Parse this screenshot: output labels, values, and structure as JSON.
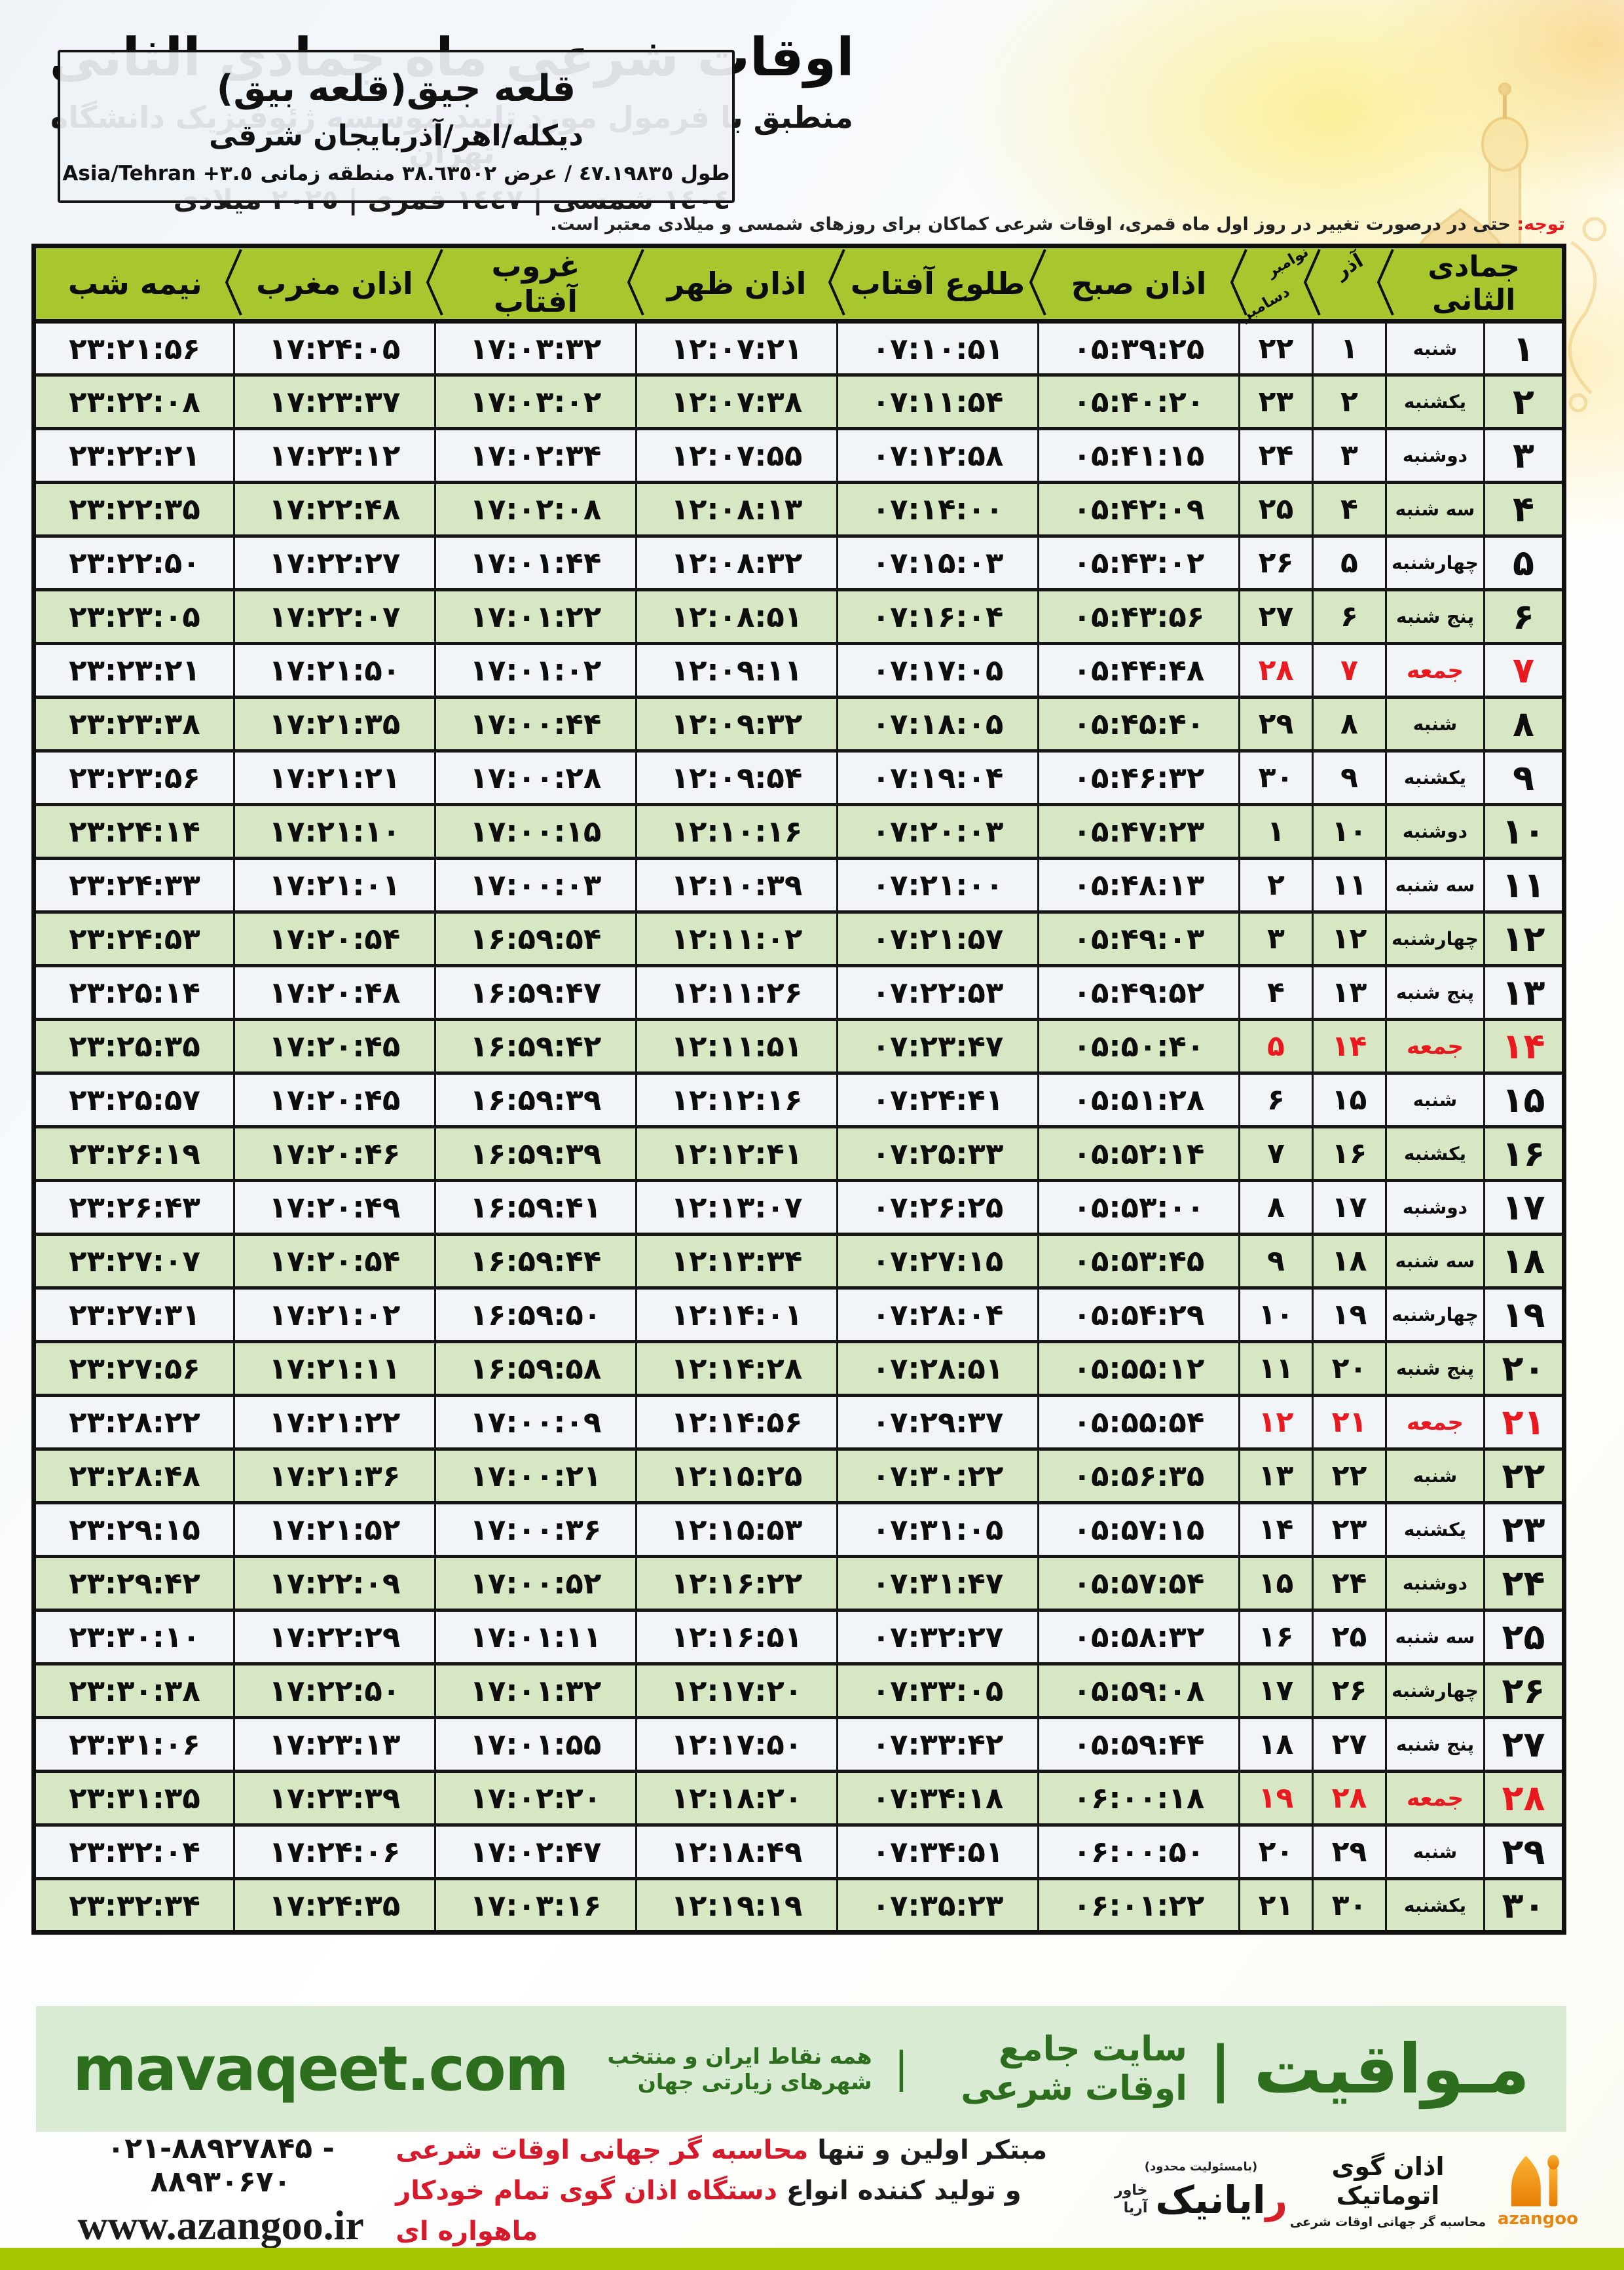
{
  "header": {
    "title": "اوقات شرعی ماه جمادی الثانی",
    "subtitle": "منطبق با فرمول مورد تایید موسسه ژئوفیزیک دانشگاه تهران",
    "years": "١٤٠٤ شمسی | ١٤٤٧ قمری | ٢٠٢٥ میلادی",
    "location": {
      "name": "قلعه جیق(قلعه بیق)",
      "region": "دیکله/اهر/آذربایجان شرقی",
      "coords": "طول ٤٧.١٩٨٣٥ / عرض ٣٨.٦٣٥٠٢ منطقه زمانی",
      "timezone": "Asia/Tehran +٣.٥"
    },
    "note_label": "توجه:",
    "note_text": "حتی در درصورت تغییر در روز اول ماه قمری، اوقات شرعی کماکان برای روزهای شمسی و میلادی معتبر است."
  },
  "table": {
    "columns": {
      "jumada": "جمادی الثانی",
      "azar": "آذر",
      "nov": "نوامبر",
      "dec": "دسامبر",
      "sobh": "اذان صبح",
      "sunrise": "طلوع آفتاب",
      "zohr": "اذان ظهر",
      "sunset": "غروب آفتاب",
      "maghreb": "اذان مغرب",
      "midnight": "نیمه شب"
    },
    "rows": [
      {
        "jumada": "۱",
        "weekday": "شنبه",
        "azar": "۱",
        "greg": "۲۲",
        "sobh": "۰۵:۳۹:۲۵",
        "sunrise": "۰۷:۱۰:۵۱",
        "zohr": "۱۲:۰۷:۲۱",
        "sunset": "۱۷:۰۳:۳۲",
        "maghreb": "۱۷:۲۴:۰۵",
        "midnight": "۲۳:۲۱:۵۶",
        "friday": false
      },
      {
        "jumada": "۲",
        "weekday": "یکشنبه",
        "azar": "۲",
        "greg": "۲۳",
        "sobh": "۰۵:۴۰:۲۰",
        "sunrise": "۰۷:۱۱:۵۴",
        "zohr": "۱۲:۰۷:۳۸",
        "sunset": "۱۷:۰۳:۰۲",
        "maghreb": "۱۷:۲۳:۳۷",
        "midnight": "۲۳:۲۲:۰۸",
        "friday": false
      },
      {
        "jumada": "۳",
        "weekday": "دوشنبه",
        "azar": "۳",
        "greg": "۲۴",
        "sobh": "۰۵:۴۱:۱۵",
        "sunrise": "۰۷:۱۲:۵۸",
        "zohr": "۱۲:۰۷:۵۵",
        "sunset": "۱۷:۰۲:۳۴",
        "maghreb": "۱۷:۲۳:۱۲",
        "midnight": "۲۳:۲۲:۲۱",
        "friday": false
      },
      {
        "jumada": "۴",
        "weekday": "سه شنبه",
        "azar": "۴",
        "greg": "۲۵",
        "sobh": "۰۵:۴۲:۰۹",
        "sunrise": "۰۷:۱۴:۰۰",
        "zohr": "۱۲:۰۸:۱۳",
        "sunset": "۱۷:۰۲:۰۸",
        "maghreb": "۱۷:۲۲:۴۸",
        "midnight": "۲۳:۲۲:۳۵",
        "friday": false
      },
      {
        "jumada": "۵",
        "weekday": "چهارشنبه",
        "azar": "۵",
        "greg": "۲۶",
        "sobh": "۰۵:۴۳:۰۲",
        "sunrise": "۰۷:۱۵:۰۳",
        "zohr": "۱۲:۰۸:۳۲",
        "sunset": "۱۷:۰۱:۴۴",
        "maghreb": "۱۷:۲۲:۲۷",
        "midnight": "۲۳:۲۲:۵۰",
        "friday": false
      },
      {
        "jumada": "۶",
        "weekday": "پنج شنبه",
        "azar": "۶",
        "greg": "۲۷",
        "sobh": "۰۵:۴۳:۵۶",
        "sunrise": "۰۷:۱۶:۰۴",
        "zohr": "۱۲:۰۸:۵۱",
        "sunset": "۱۷:۰۱:۲۲",
        "maghreb": "۱۷:۲۲:۰۷",
        "midnight": "۲۳:۲۳:۰۵",
        "friday": false
      },
      {
        "jumada": "۷",
        "weekday": "جمعه",
        "azar": "۷",
        "greg": "۲۸",
        "sobh": "۰۵:۴۴:۴۸",
        "sunrise": "۰۷:۱۷:۰۵",
        "zohr": "۱۲:۰۹:۱۱",
        "sunset": "۱۷:۰۱:۰۲",
        "maghreb": "۱۷:۲۱:۵۰",
        "midnight": "۲۳:۲۳:۲۱",
        "friday": true
      },
      {
        "jumada": "۸",
        "weekday": "شنبه",
        "azar": "۸",
        "greg": "۲۹",
        "sobh": "۰۵:۴۵:۴۰",
        "sunrise": "۰۷:۱۸:۰۵",
        "zohr": "۱۲:۰۹:۳۲",
        "sunset": "۱۷:۰۰:۴۴",
        "maghreb": "۱۷:۲۱:۳۵",
        "midnight": "۲۳:۲۳:۳۸",
        "friday": false
      },
      {
        "jumada": "۹",
        "weekday": "یکشنبه",
        "azar": "۹",
        "greg": "۳۰",
        "sobh": "۰۵:۴۶:۳۲",
        "sunrise": "۰۷:۱۹:۰۴",
        "zohr": "۱۲:۰۹:۵۴",
        "sunset": "۱۷:۰۰:۲۸",
        "maghreb": "۱۷:۲۱:۲۱",
        "midnight": "۲۳:۲۳:۵۶",
        "friday": false
      },
      {
        "jumada": "۱۰",
        "weekday": "دوشنبه",
        "azar": "۱۰",
        "greg": "۱",
        "sobh": "۰۵:۴۷:۲۳",
        "sunrise": "۰۷:۲۰:۰۳",
        "zohr": "۱۲:۱۰:۱۶",
        "sunset": "۱۷:۰۰:۱۵",
        "maghreb": "۱۷:۲۱:۱۰",
        "midnight": "۲۳:۲۴:۱۴",
        "friday": false
      },
      {
        "jumada": "۱۱",
        "weekday": "سه شنبه",
        "azar": "۱۱",
        "greg": "۲",
        "sobh": "۰۵:۴۸:۱۳",
        "sunrise": "۰۷:۲۱:۰۰",
        "zohr": "۱۲:۱۰:۳۹",
        "sunset": "۱۷:۰۰:۰۳",
        "maghreb": "۱۷:۲۱:۰۱",
        "midnight": "۲۳:۲۴:۳۳",
        "friday": false
      },
      {
        "jumada": "۱۲",
        "weekday": "چهارشنبه",
        "azar": "۱۲",
        "greg": "۳",
        "sobh": "۰۵:۴۹:۰۳",
        "sunrise": "۰۷:۲۱:۵۷",
        "zohr": "۱۲:۱۱:۰۲",
        "sunset": "۱۶:۵۹:۵۴",
        "maghreb": "۱۷:۲۰:۵۴",
        "midnight": "۲۳:۲۴:۵۳",
        "friday": false
      },
      {
        "jumada": "۱۳",
        "weekday": "پنج شنبه",
        "azar": "۱۳",
        "greg": "۴",
        "sobh": "۰۵:۴۹:۵۲",
        "sunrise": "۰۷:۲۲:۵۳",
        "zohr": "۱۲:۱۱:۲۶",
        "sunset": "۱۶:۵۹:۴۷",
        "maghreb": "۱۷:۲۰:۴۸",
        "midnight": "۲۳:۲۵:۱۴",
        "friday": false
      },
      {
        "jumada": "۱۴",
        "weekday": "جمعه",
        "azar": "۱۴",
        "greg": "۵",
        "sobh": "۰۵:۵۰:۴۰",
        "sunrise": "۰۷:۲۳:۴۷",
        "zohr": "۱۲:۱۱:۵۱",
        "sunset": "۱۶:۵۹:۴۲",
        "maghreb": "۱۷:۲۰:۴۵",
        "midnight": "۲۳:۲۵:۳۵",
        "friday": true
      },
      {
        "jumada": "۱۵",
        "weekday": "شنبه",
        "azar": "۱۵",
        "greg": "۶",
        "sobh": "۰۵:۵۱:۲۸",
        "sunrise": "۰۷:۲۴:۴۱",
        "zohr": "۱۲:۱۲:۱۶",
        "sunset": "۱۶:۵۹:۳۹",
        "maghreb": "۱۷:۲۰:۴۵",
        "midnight": "۲۳:۲۵:۵۷",
        "friday": false
      },
      {
        "jumada": "۱۶",
        "weekday": "یکشنبه",
        "azar": "۱۶",
        "greg": "۷",
        "sobh": "۰۵:۵۲:۱۴",
        "sunrise": "۰۷:۲۵:۳۳",
        "zohr": "۱۲:۱۲:۴۱",
        "sunset": "۱۶:۵۹:۳۹",
        "maghreb": "۱۷:۲۰:۴۶",
        "midnight": "۲۳:۲۶:۱۹",
        "friday": false
      },
      {
        "jumada": "۱۷",
        "weekday": "دوشنبه",
        "azar": "۱۷",
        "greg": "۸",
        "sobh": "۰۵:۵۳:۰۰",
        "sunrise": "۰۷:۲۶:۲۵",
        "zohr": "۱۲:۱۳:۰۷",
        "sunset": "۱۶:۵۹:۴۱",
        "maghreb": "۱۷:۲۰:۴۹",
        "midnight": "۲۳:۲۶:۴۳",
        "friday": false
      },
      {
        "jumada": "۱۸",
        "weekday": "سه شنبه",
        "azar": "۱۸",
        "greg": "۹",
        "sobh": "۰۵:۵۳:۴۵",
        "sunrise": "۰۷:۲۷:۱۵",
        "zohr": "۱۲:۱۳:۳۴",
        "sunset": "۱۶:۵۹:۴۴",
        "maghreb": "۱۷:۲۰:۵۴",
        "midnight": "۲۳:۲۷:۰۷",
        "friday": false
      },
      {
        "jumada": "۱۹",
        "weekday": "چهارشنبه",
        "azar": "۱۹",
        "greg": "۱۰",
        "sobh": "۰۵:۵۴:۲۹",
        "sunrise": "۰۷:۲۸:۰۴",
        "zohr": "۱۲:۱۴:۰۱",
        "sunset": "۱۶:۵۹:۵۰",
        "maghreb": "۱۷:۲۱:۰۲",
        "midnight": "۲۳:۲۷:۳۱",
        "friday": false
      },
      {
        "jumada": "۲۰",
        "weekday": "پنج شنبه",
        "azar": "۲۰",
        "greg": "۱۱",
        "sobh": "۰۵:۵۵:۱۲",
        "sunrise": "۰۷:۲۸:۵۱",
        "zohr": "۱۲:۱۴:۲۸",
        "sunset": "۱۶:۵۹:۵۸",
        "maghreb": "۱۷:۲۱:۱۱",
        "midnight": "۲۳:۲۷:۵۶",
        "friday": false
      },
      {
        "jumada": "۲۱",
        "weekday": "جمعه",
        "azar": "۲۱",
        "greg": "۱۲",
        "sobh": "۰۵:۵۵:۵۴",
        "sunrise": "۰۷:۲۹:۳۷",
        "zohr": "۱۲:۱۴:۵۶",
        "sunset": "۱۷:۰۰:۰۹",
        "maghreb": "۱۷:۲۱:۲۲",
        "midnight": "۲۳:۲۸:۲۲",
        "friday": true
      },
      {
        "jumada": "۲۲",
        "weekday": "شنبه",
        "azar": "۲۲",
        "greg": "۱۳",
        "sobh": "۰۵:۵۶:۳۵",
        "sunrise": "۰۷:۳۰:۲۲",
        "zohr": "۱۲:۱۵:۲۵",
        "sunset": "۱۷:۰۰:۲۱",
        "maghreb": "۱۷:۲۱:۳۶",
        "midnight": "۲۳:۲۸:۴۸",
        "friday": false
      },
      {
        "jumada": "۲۳",
        "weekday": "یکشنبه",
        "azar": "۲۳",
        "greg": "۱۴",
        "sobh": "۰۵:۵۷:۱۵",
        "sunrise": "۰۷:۳۱:۰۵",
        "zohr": "۱۲:۱۵:۵۳",
        "sunset": "۱۷:۰۰:۳۶",
        "maghreb": "۱۷:۲۱:۵۲",
        "midnight": "۲۳:۲۹:۱۵",
        "friday": false
      },
      {
        "jumada": "۲۴",
        "weekday": "دوشنبه",
        "azar": "۲۴",
        "greg": "۱۵",
        "sobh": "۰۵:۵۷:۵۴",
        "sunrise": "۰۷:۳۱:۴۷",
        "zohr": "۱۲:۱۶:۲۲",
        "sunset": "۱۷:۰۰:۵۲",
        "maghreb": "۱۷:۲۲:۰۹",
        "midnight": "۲۳:۲۹:۴۲",
        "friday": false
      },
      {
        "jumada": "۲۵",
        "weekday": "سه شنبه",
        "azar": "۲۵",
        "greg": "۱۶",
        "sobh": "۰۵:۵۸:۳۲",
        "sunrise": "۰۷:۳۲:۲۷",
        "zohr": "۱۲:۱۶:۵۱",
        "sunset": "۱۷:۰۱:۱۱",
        "maghreb": "۱۷:۲۲:۲۹",
        "midnight": "۲۳:۳۰:۱۰",
        "friday": false
      },
      {
        "jumada": "۲۶",
        "weekday": "چهارشنبه",
        "azar": "۲۶",
        "greg": "۱۷",
        "sobh": "۰۵:۵۹:۰۸",
        "sunrise": "۰۷:۳۳:۰۵",
        "zohr": "۱۲:۱۷:۲۰",
        "sunset": "۱۷:۰۱:۳۲",
        "maghreb": "۱۷:۲۲:۵۰",
        "midnight": "۲۳:۳۰:۳۸",
        "friday": false
      },
      {
        "jumada": "۲۷",
        "weekday": "پنج شنبه",
        "azar": "۲۷",
        "greg": "۱۸",
        "sobh": "۰۵:۵۹:۴۴",
        "sunrise": "۰۷:۳۳:۴۲",
        "zohr": "۱۲:۱۷:۵۰",
        "sunset": "۱۷:۰۱:۵۵",
        "maghreb": "۱۷:۲۳:۱۳",
        "midnight": "۲۳:۳۱:۰۶",
        "friday": false
      },
      {
        "jumada": "۲۸",
        "weekday": "جمعه",
        "azar": "۲۸",
        "greg": "۱۹",
        "sobh": "۰۶:۰۰:۱۸",
        "sunrise": "۰۷:۳۴:۱۸",
        "zohr": "۱۲:۱۸:۲۰",
        "sunset": "۱۷:۰۲:۲۰",
        "maghreb": "۱۷:۲۳:۳۹",
        "midnight": "۲۳:۳۱:۳۵",
        "friday": true
      },
      {
        "jumada": "۲۹",
        "weekday": "شنبه",
        "azar": "۲۹",
        "greg": "۲۰",
        "sobh": "۰۶:۰۰:۵۰",
        "sunrise": "۰۷:۳۴:۵۱",
        "zohr": "۱۲:۱۸:۴۹",
        "sunset": "۱۷:۰۲:۴۷",
        "maghreb": "۱۷:۲۴:۰۶",
        "midnight": "۲۳:۳۲:۰۴",
        "friday": false
      },
      {
        "jumada": "۳۰",
        "weekday": "یکشنبه",
        "azar": "۳۰",
        "greg": "۲۱",
        "sobh": "۰۶:۰۱:۲۲",
        "sunrise": "۰۷:۳۵:۲۳",
        "zohr": "۱۲:۱۹:۱۹",
        "sunset": "۱۷:۰۳:۱۶",
        "maghreb": "۱۷:۲۴:۳۵",
        "midnight": "۲۳:۳۲:۳۴",
        "friday": false
      }
    ]
  },
  "mavaqeet_bar": {
    "brand": "مـواقیت",
    "divider1": "|",
    "tagline": "سایت جامع اوقات شرعی",
    "divider2": "|",
    "subtext": "همه نقاط ایران و منتخب شهرهای زیارتی جهان",
    "site": "mavaqeet.com"
  },
  "footer": {
    "phone": "۰۲۱-۸۸۹۲۷۸۴۵ - ۸۸۹۳۰۶۷۰",
    "website": "www.azangoo.ir",
    "promo_line1_black": "مبتکر اولین و تنها",
    "promo_line1_red": "محاسبه گر جهانی اوقات شرعی",
    "promo_line2_black": "و تولید کننده انواع",
    "promo_line2_red": "دستگاه اذان گوی تمام خودکار ماهواره ای",
    "rayanik": {
      "note": "(بامسئولیت محدود)",
      "name_first": "ر",
      "name_rest": "ایانیک",
      "sub1": "خاور",
      "sub2": "آریا"
    },
    "azangoo": {
      "title": "اذان گوی اتوماتیک",
      "sub": "محاسبه گر جهانی اوقات شرعی",
      "brand": "azangoo"
    }
  },
  "colors": {
    "header_green": "#a8c62e",
    "row_green": "#d8e7c3",
    "row_light": "#f2f5f8",
    "friday_red": "#e8191f",
    "footer_bar_bg": "#d9ecd3",
    "footer_green_text": "#2c6e1d",
    "lime_bar": "#a6c502",
    "azangoo_orange": "#e8850c"
  }
}
